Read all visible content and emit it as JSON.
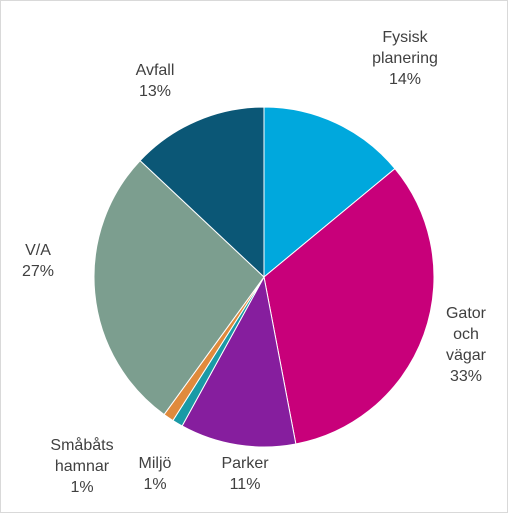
{
  "chart_data": {
    "type": "pie",
    "categories": [
      "Fysisk planering",
      "Gator och vägar",
      "Parker",
      "Miljö",
      "Småbåts hamnar",
      "V/A",
      "Avfall"
    ],
    "values": [
      14,
      33,
      11,
      1,
      1,
      27,
      13
    ],
    "value_labels": [
      "14%",
      "33%",
      "11%",
      "1%",
      "1%",
      "27%",
      "13%"
    ],
    "colors": [
      "#00a8dd",
      "#c8007a",
      "#861e9e",
      "#1a9aa6",
      "#e08a3c",
      "#7c9e8f",
      "#0b5776"
    ]
  }
}
